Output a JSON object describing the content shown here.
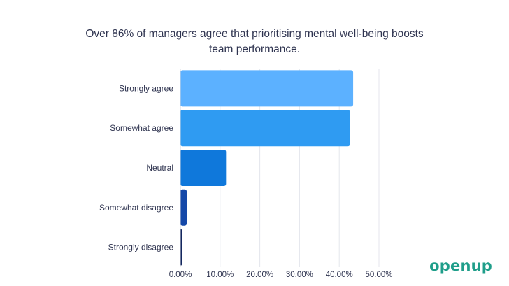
{
  "chart_data": {
    "type": "bar",
    "orientation": "horizontal",
    "title_lines": [
      "Over 86% of managers agree that prioritising mental well-being boosts",
      "team performance."
    ],
    "categories": [
      "Strongly agree",
      "Somewhat agree",
      "Neutral",
      "Somewhat disagree",
      "Strongly disagree"
    ],
    "values": [
      43.5,
      42.7,
      11.5,
      1.6,
      0.4
    ],
    "value_unit": "%",
    "xlim": [
      0,
      50
    ],
    "xticks": [
      0,
      10,
      20,
      30,
      40,
      50
    ],
    "xtick_labels": [
      "0.00%",
      "10.00%",
      "20.00%",
      "30.00%",
      "40.00%",
      "50.00%"
    ],
    "xlabel": "",
    "ylabel": "",
    "grid": "vertical",
    "colors": [
      "#5cb1ff",
      "#2f9bf2",
      "#0f78db",
      "#1448a8",
      "#14275f"
    ]
  },
  "brand": {
    "logo_text": "openup",
    "logo_color": "#1f9e8a"
  }
}
